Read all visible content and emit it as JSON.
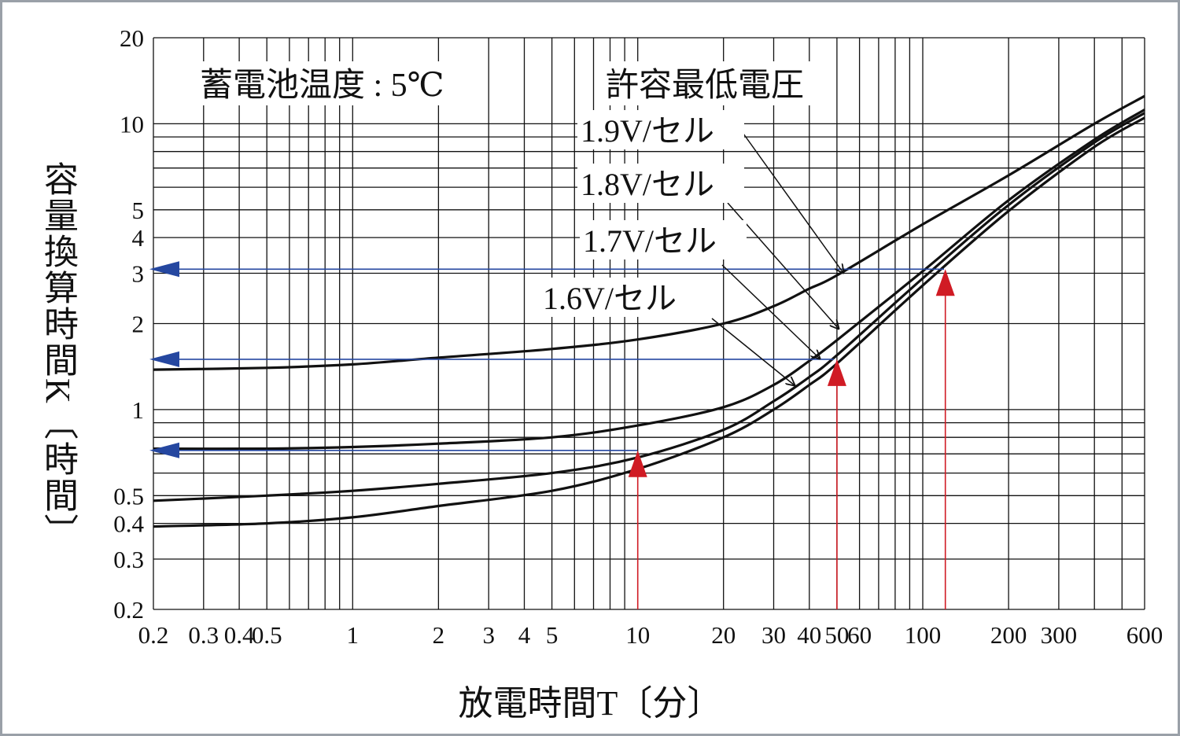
{
  "chart_data": {
    "type": "line",
    "x_scale": "log",
    "y_scale": "log",
    "xlim": [
      0.2,
      600
    ],
    "ylim": [
      0.2,
      20
    ],
    "x_ticks": [
      {
        "v": 0.2,
        "label": "0.2"
      },
      {
        "v": 0.3,
        "label": "0.3"
      },
      {
        "v": 0.4,
        "label": "0.4"
      },
      {
        "v": 0.5,
        "label": "0.5"
      },
      {
        "v": 1,
        "label": "1"
      },
      {
        "v": 2,
        "label": "2"
      },
      {
        "v": 3,
        "label": "3"
      },
      {
        "v": 4,
        "label": "4"
      },
      {
        "v": 5,
        "label": "5"
      },
      {
        "v": 10,
        "label": "10"
      },
      {
        "v": 20,
        "label": "20"
      },
      {
        "v": 30,
        "label": "30"
      },
      {
        "v": 40,
        "label": "40"
      },
      {
        "v": 50,
        "label": "50"
      },
      {
        "v": 60,
        "label": "60"
      },
      {
        "v": 100,
        "label": "100"
      },
      {
        "v": 200,
        "label": "200"
      },
      {
        "v": 300,
        "label": "300"
      },
      {
        "v": 600,
        "label": "600"
      }
    ],
    "y_ticks": [
      {
        "v": 0.2,
        "label": "0.2"
      },
      {
        "v": 0.3,
        "label": "0.3"
      },
      {
        "v": 0.4,
        "label": "0.4"
      },
      {
        "v": 0.5,
        "label": "0.5"
      },
      {
        "v": 1,
        "label": "1"
      },
      {
        "v": 2,
        "label": "2"
      },
      {
        "v": 3,
        "label": "3"
      },
      {
        "v": 4,
        "label": "4"
      },
      {
        "v": 5,
        "label": "5"
      },
      {
        "v": 10,
        "label": "10"
      },
      {
        "v": 20,
        "label": "20"
      }
    ],
    "x_grid": [
      0.2,
      0.3,
      0.4,
      0.5,
      0.6,
      0.7,
      0.8,
      0.9,
      1,
      2,
      3,
      4,
      5,
      6,
      7,
      8,
      9,
      10,
      20,
      30,
      40,
      50,
      60,
      70,
      80,
      90,
      100,
      200,
      300,
      400,
      500,
      600
    ],
    "y_grid": [
      0.2,
      0.3,
      0.4,
      0.5,
      0.6,
      0.7,
      0.8,
      0.9,
      1,
      2,
      3,
      4,
      5,
      6,
      7,
      8,
      9,
      10,
      20
    ],
    "xlabel": "放電時間T〔分〕",
    "ylabel": "容量換算時間K〔時間〕",
    "annotations": [
      "蓄電池温度 : 5℃",
      "許容最低電圧"
    ],
    "series": [
      {
        "name": "1.9V/セル",
        "points": [
          [
            0.2,
            1.38
          ],
          [
            0.5,
            1.4
          ],
          [
            1,
            1.44
          ],
          [
            2,
            1.52
          ],
          [
            5,
            1.63
          ],
          [
            10,
            1.76
          ],
          [
            20,
            2.0
          ],
          [
            30,
            2.3
          ],
          [
            40,
            2.65
          ],
          [
            50,
            2.95
          ],
          [
            100,
            4.45
          ],
          [
            200,
            6.6
          ],
          [
            400,
            10.0
          ],
          [
            600,
            12.5
          ]
        ]
      },
      {
        "name": "1.8V/セル",
        "points": [
          [
            0.2,
            0.73
          ],
          [
            0.5,
            0.73
          ],
          [
            1,
            0.74
          ],
          [
            2,
            0.76
          ],
          [
            5,
            0.8
          ],
          [
            10,
            0.88
          ],
          [
            20,
            1.02
          ],
          [
            30,
            1.22
          ],
          [
            40,
            1.48
          ],
          [
            50,
            1.75
          ],
          [
            100,
            3.05
          ],
          [
            200,
            5.4
          ],
          [
            400,
            8.8
          ],
          [
            600,
            11.2
          ]
        ]
      },
      {
        "name": "1.7V/セル",
        "points": [
          [
            0.2,
            0.48
          ],
          [
            0.5,
            0.5
          ],
          [
            1,
            0.52
          ],
          [
            2,
            0.55
          ],
          [
            5,
            0.6
          ],
          [
            10,
            0.68
          ],
          [
            20,
            0.85
          ],
          [
            30,
            1.07
          ],
          [
            40,
            1.3
          ],
          [
            50,
            1.55
          ],
          [
            100,
            2.88
          ],
          [
            200,
            5.2
          ],
          [
            400,
            8.6
          ],
          [
            600,
            10.9
          ]
        ]
      },
      {
        "name": "1.6V/セル",
        "points": [
          [
            0.2,
            0.39
          ],
          [
            0.5,
            0.4
          ],
          [
            1,
            0.42
          ],
          [
            2,
            0.46
          ],
          [
            5,
            0.52
          ],
          [
            10,
            0.62
          ],
          [
            20,
            0.8
          ],
          [
            30,
            1.0
          ],
          [
            40,
            1.22
          ],
          [
            50,
            1.45
          ],
          [
            100,
            2.72
          ],
          [
            200,
            4.95
          ],
          [
            400,
            8.3
          ],
          [
            600,
            10.5
          ]
        ]
      }
    ],
    "blue_arrows_y": [
      3.1,
      1.5,
      0.72
    ],
    "red_arrows_x": [
      10,
      50,
      120
    ],
    "colors": {
      "curve": "#111111",
      "grid": "#111111",
      "blue": "#2547a0",
      "red": "#d01b24",
      "frame": "#9aa0a8"
    }
  }
}
